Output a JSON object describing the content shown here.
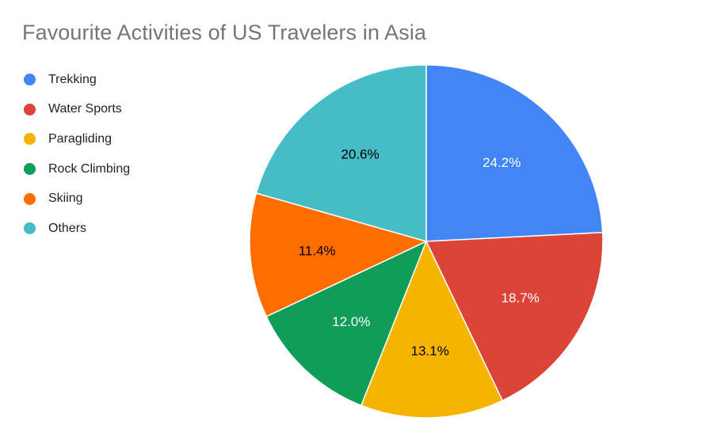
{
  "chart_data": {
    "type": "pie",
    "title": "Favourite Activities of US Travelers in Asia",
    "legend_position": "left",
    "slices": [
      {
        "label": "Trekking",
        "value": 24.2,
        "value_label": "24.2%",
        "color": "#4285F4",
        "label_color": "#ffffff"
      },
      {
        "label": "Water Sports",
        "value": 18.7,
        "value_label": "18.7%",
        "color": "#DB4437",
        "label_color": "#ffffff"
      },
      {
        "label": "Paragliding",
        "value": 13.1,
        "value_label": "13.1%",
        "color": "#F4B400",
        "label_color": "#000000"
      },
      {
        "label": "Rock Climbing",
        "value": 12.0,
        "value_label": "12.0%",
        "color": "#0F9D58",
        "label_color": "#ffffff"
      },
      {
        "label": "Skiing",
        "value": 11.4,
        "value_label": "11.4%",
        "color": "#FF6D00",
        "label_color": "#000000"
      },
      {
        "label": "Others",
        "value": 20.6,
        "value_label": "20.6%",
        "color": "#46BDC6",
        "label_color": "#000000"
      }
    ]
  }
}
